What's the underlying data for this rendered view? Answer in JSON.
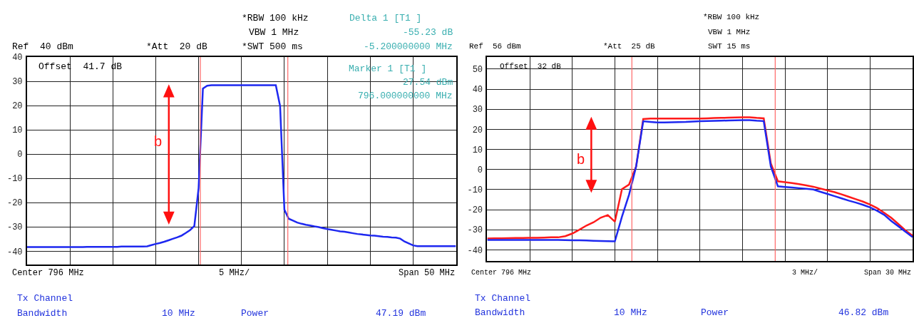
{
  "chart_data": [
    {
      "type": "line",
      "grid": true,
      "tick_labels": "y",
      "marker": "none",
      "ylim": [
        -45.5,
        40
      ],
      "yticks": [
        -40,
        -30,
        -20,
        -10,
        0,
        10,
        20,
        30,
        40
      ],
      "categories": [
        null,
        null,
        null,
        null,
        null,
        null,
        null,
        null,
        null,
        null,
        null,
        null,
        null,
        null,
        null,
        null,
        null,
        null,
        null,
        null,
        null,
        null,
        null,
        null,
        null,
        null,
        null,
        null,
        null,
        null,
        null,
        null,
        null,
        null,
        null,
        null,
        null,
        null,
        null,
        null,
        null,
        null,
        null,
        null,
        null,
        null,
        null,
        null,
        null,
        null,
        null,
        null,
        null,
        null,
        null,
        null,
        null,
        null,
        null,
        null,
        null,
        null,
        null,
        null,
        null,
        null,
        null,
        null,
        null,
        null,
        null,
        null,
        null,
        null,
        null,
        null,
        null,
        null,
        null,
        null,
        null,
        null,
        null,
        null,
        null,
        null,
        null,
        null,
        null,
        null,
        null,
        null,
        null,
        null,
        null,
        null,
        null,
        null,
        null,
        null,
        null
      ],
      "series": [
        {
          "color": "#1e28f0",
          "values": [
            -38.3,
            -38.3,
            -38.3,
            -38.3,
            -38.3,
            -38.3,
            -38.3,
            -38.3,
            -38.3,
            -38.3,
            -38.3,
            -38.3,
            -38.3,
            -38.3,
            -38.2,
            -38.2,
            -38.2,
            -38.2,
            -38.2,
            -38.2,
            -38.2,
            -38.2,
            -38.1,
            -38.1,
            -38.1,
            -38.1,
            -38.1,
            -38.1,
            -38,
            -37.5,
            -37,
            -36.6,
            -36.1,
            -35.5,
            -34.9,
            -34.3,
            -33.6,
            -32.5,
            -31.3,
            -29.6,
            -14,
            27,
            28.2,
            28.4,
            28.4,
            28.4,
            28.4,
            28.4,
            28.4,
            28.4,
            28.4,
            28.4,
            28.4,
            28.4,
            28.4,
            28.4,
            28.4,
            28.4,
            28.4,
            19.8,
            -22.9,
            -26.6,
            -27.4,
            -28.2,
            -28.7,
            -29.1,
            -29.4,
            -29.8,
            -30.1,
            -30.5,
            -30.9,
            -31.2,
            -31.5,
            -31.8,
            -32,
            -32.3,
            -32.6,
            -32.9,
            -33.1,
            -33.3,
            -33.5,
            -33.6,
            -33.8,
            -34,
            -34.1,
            -34.3,
            -34.4,
            -34.8,
            -36,
            -36.8,
            -37.6,
            -37.9,
            -37.9,
            -37.9,
            -37.9,
            -37.9,
            -37.9,
            -37.9,
            -37.9,
            -37.9,
            -37.9
          ]
        }
      ],
      "annotations": [
        "Ref  40 dBm",
        "*Att  20 dB",
        "*RBW 100 kHz",
        "VBW 1 MHz",
        "*SWT 500 ms",
        "Delta 1 [T1 ]",
        "-55.23 dB",
        "-5.200000000 MHz",
        "Offset  41.7 dB",
        "Marker 1 [T1 ]",
        "27.54 dBm",
        "796.000000000 MHz",
        "Center 796 MHz",
        "5 MHz/",
        "Span 50 MHz",
        "Tx Channel",
        "Bandwidth",
        "10 MHz",
        "Power",
        "47.19 dBm",
        "b"
      ]
    },
    {
      "type": "line",
      "grid": true,
      "tick_labels": "y",
      "marker": "none",
      "ylim": [
        -45.6,
        56
      ],
      "yticks": [
        -40,
        -30,
        -20,
        -10,
        0,
        10,
        20,
        30,
        40,
        50
      ],
      "categories": [
        null,
        null,
        null,
        null,
        null,
        null,
        null,
        null,
        null,
        null,
        null,
        null,
        null,
        null,
        null,
        null,
        null,
        null,
        null,
        null,
        null,
        null,
        null,
        null,
        null,
        null,
        null,
        null,
        null,
        null,
        null,
        null,
        null,
        null,
        null,
        null,
        null,
        null,
        null,
        null,
        null,
        null,
        null,
        null,
        null,
        null,
        null,
        null,
        null,
        null,
        null,
        null,
        null,
        null,
        null,
        null,
        null,
        null,
        null,
        null,
        null
      ],
      "series": [
        {
          "color": "#ff1a1a",
          "values": [
            -34.4,
            -34.3,
            -34.3,
            -34.2,
            -34.1,
            -34.1,
            -34,
            -34,
            -33.9,
            -33.8,
            -33.8,
            -33.2,
            -31.9,
            -30,
            -27.9,
            -26.3,
            -24,
            -22.7,
            -26,
            -9.8,
            -7.5,
            1.5,
            25.1,
            25.4,
            25.4,
            25.4,
            25.4,
            25.4,
            25.4,
            25.4,
            25.4,
            25.5,
            25.6,
            25.7,
            25.8,
            25.9,
            26,
            26,
            25.7,
            25.5,
            3,
            -5.9,
            -6.3,
            -6.8,
            -7.3,
            -7.9,
            -8.6,
            -9.5,
            -10.4,
            -11.3,
            -12.4,
            -13.6,
            -14.8,
            -16,
            -17.5,
            -19.2,
            -21.6,
            -24.1,
            -27.2,
            -30.4,
            -33
          ]
        },
        {
          "color": "#1e28f0",
          "values": [
            -35.1,
            -35.1,
            -35.1,
            -35.1,
            -35.1,
            -35.1,
            -35.1,
            -35.1,
            -35.1,
            -35.1,
            -35.1,
            -35.2,
            -35.3,
            -35.3,
            -35.4,
            -35.5,
            -35.6,
            -35.7,
            -35.8,
            -23.5,
            -12.6,
            1.5,
            24,
            23.7,
            23.4,
            23.4,
            23.5,
            23.6,
            23.7,
            23.9,
            24,
            24.1,
            24.2,
            24.3,
            24.4,
            24.5,
            24.6,
            24.6,
            24.3,
            24.1,
            1.5,
            -8.4,
            -8.7,
            -9,
            -9.3,
            -9.6,
            -10,
            -11.1,
            -12.2,
            -13.3,
            -14.4,
            -15.5,
            -16.5,
            -17.6,
            -18.9,
            -20.6,
            -22.6,
            -25.7,
            -28.3,
            -31,
            -33.7
          ]
        }
      ],
      "annotations": [
        "Ref  56 dBm",
        "*Att  25 dB",
        "*RBW 100 kHz",
        "VBW 1 MHz",
        "SWT 15 ms",
        "Offset  32 dB",
        "Center 796 MHz",
        "3 MHz/",
        "Span 30 MHz",
        "Tx Channel",
        "Bandwidth",
        "10 MHz",
        "Power",
        "46.82 dBm",
        "b"
      ]
    }
  ]
}
